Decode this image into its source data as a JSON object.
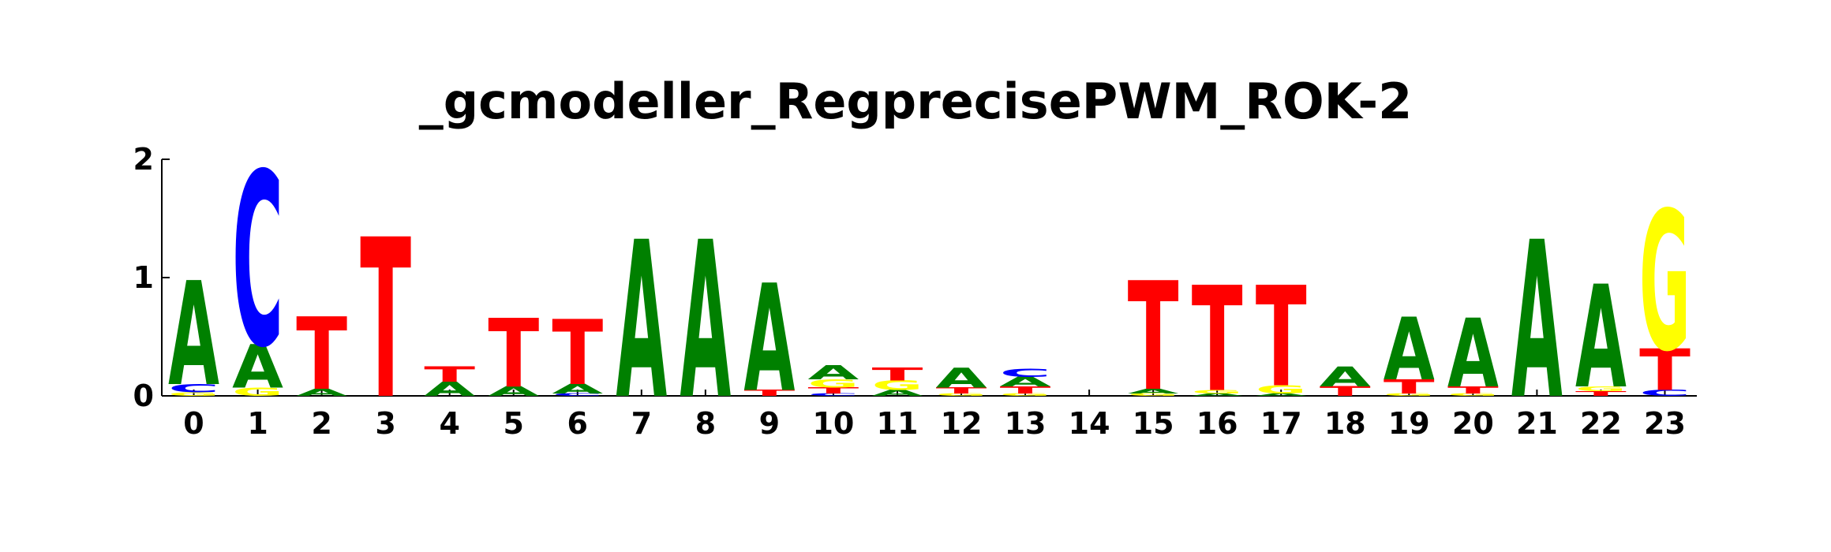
{
  "chart_data": {
    "type": "sequence-logo",
    "title": "_gcmodeller_RegprecisePWM_ROK-2",
    "xlabel": "",
    "ylabel": "",
    "ylim": [
      0,
      2
    ],
    "yticks": [
      "0",
      "1",
      "2"
    ],
    "x": [
      "0",
      "1",
      "2",
      "3",
      "4",
      "5",
      "6",
      "7",
      "8",
      "9",
      "10",
      "11",
      "12",
      "13",
      "14",
      "15",
      "16",
      "17",
      "18",
      "19",
      "20",
      "21",
      "22",
      "23"
    ],
    "colors": {
      "A": "#008000",
      "C": "#0000ff",
      "G": "#ffff00",
      "T": "#ff0000"
    },
    "positions": [
      [
        {
          "base": "G",
          "height": 0.03
        },
        {
          "base": "C",
          "height": 0.07
        },
        {
          "base": "A",
          "height": 0.88
        }
      ],
      [
        {
          "base": "G",
          "height": 0.07
        },
        {
          "base": "A",
          "height": 0.37
        },
        {
          "base": "C",
          "height": 1.47
        }
      ],
      [
        {
          "base": "A",
          "height": 0.06
        },
        {
          "base": "T",
          "height": 0.61
        }
      ],
      [
        {
          "base": "T",
          "height": 1.35
        }
      ],
      [
        {
          "base": "A",
          "height": 0.12
        },
        {
          "base": "T",
          "height": 0.13
        }
      ],
      [
        {
          "base": "A",
          "height": 0.08
        },
        {
          "base": "T",
          "height": 0.58
        }
      ],
      [
        {
          "base": "C",
          "height": 0.02
        },
        {
          "base": "A",
          "height": 0.08
        },
        {
          "base": "T",
          "height": 0.55
        }
      ],
      [
        {
          "base": "A",
          "height": 1.33
        }
      ],
      [
        {
          "base": "A",
          "height": 1.33
        }
      ],
      [
        {
          "base": "T",
          "height": 0.05
        },
        {
          "base": "A",
          "height": 0.91
        }
      ],
      [
        {
          "base": "C",
          "height": 0.02
        },
        {
          "base": "T",
          "height": 0.05
        },
        {
          "base": "G",
          "height": 0.07
        },
        {
          "base": "A",
          "height": 0.12
        }
      ],
      [
        {
          "base": "A",
          "height": 0.05
        },
        {
          "base": "G",
          "height": 0.08
        },
        {
          "base": "T",
          "height": 0.11
        }
      ],
      [
        {
          "base": "G",
          "height": 0.02
        },
        {
          "base": "T",
          "height": 0.05
        },
        {
          "base": "A",
          "height": 0.17
        }
      ],
      [
        {
          "base": "G",
          "height": 0.02
        },
        {
          "base": "T",
          "height": 0.06
        },
        {
          "base": "A",
          "height": 0.08
        },
        {
          "base": "C",
          "height": 0.07
        }
      ],
      [],
      [
        {
          "base": "G",
          "height": 0.02
        },
        {
          "base": "A",
          "height": 0.04
        },
        {
          "base": "T",
          "height": 0.92
        }
      ],
      [
        {
          "base": "A",
          "height": 0.02
        },
        {
          "base": "G",
          "height": 0.03
        },
        {
          "base": "T",
          "height": 0.89
        }
      ],
      [
        {
          "base": "A",
          "height": 0.02
        },
        {
          "base": "G",
          "height": 0.07
        },
        {
          "base": "T",
          "height": 0.85
        }
      ],
      [
        {
          "base": "T",
          "height": 0.08
        },
        {
          "base": "A",
          "height": 0.17
        }
      ],
      [
        {
          "base": "G",
          "height": 0.02
        },
        {
          "base": "T",
          "height": 0.12
        },
        {
          "base": "A",
          "height": 0.53
        }
      ],
      [
        {
          "base": "G",
          "height": 0.02
        },
        {
          "base": "T",
          "height": 0.06
        },
        {
          "base": "A",
          "height": 0.58
        }
      ],
      [
        {
          "base": "A",
          "height": 1.33
        }
      ],
      [
        {
          "base": "T",
          "height": 0.04
        },
        {
          "base": "G",
          "height": 0.04
        },
        {
          "base": "A",
          "height": 0.87
        }
      ],
      [
        {
          "base": "C",
          "height": 0.05
        },
        {
          "base": "T",
          "height": 0.35
        },
        {
          "base": "G",
          "height": 1.18
        }
      ]
    ]
  }
}
